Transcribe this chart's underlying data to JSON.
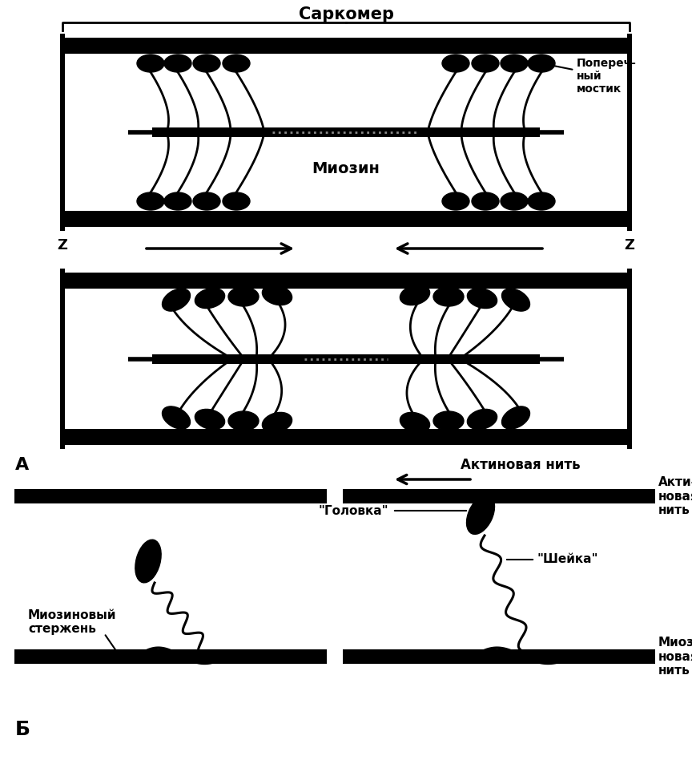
{
  "bg_color": "#ffffff",
  "filament_color": "#000000",
  "label_sarcomere": "Саркомер",
  "label_myosin": "Миозин",
  "label_crossbridge": "Поперечно-\nный\nмостик",
  "label_actin_thread": "Актиновая нить",
  "label_A": "А",
  "label_B": "Б",
  "label_myosin_rod": "Миозиновый\nстержень",
  "label_head": "\"Головка\"",
  "label_neck": "\"Шейка\"",
  "label_actin_thread2": "Акти-\nновая\nнить",
  "label_myosin_thread": "Миози-\nновая\nнить",
  "label_Z": "Z"
}
